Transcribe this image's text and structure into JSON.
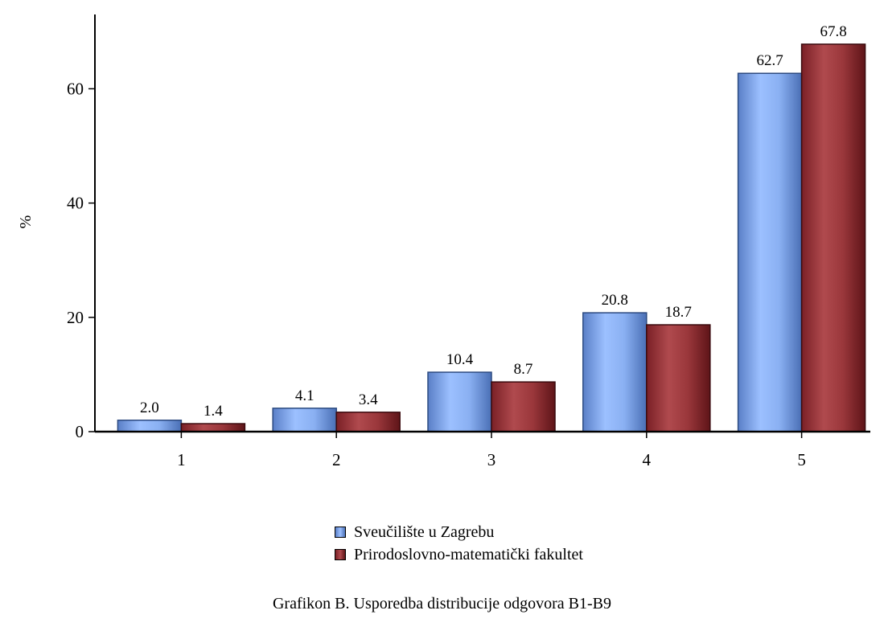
{
  "chart_data": {
    "type": "bar",
    "categories": [
      "1",
      "2",
      "3",
      "4",
      "5"
    ],
    "series": [
      {
        "name": "Sveučilište u Zagrebu",
        "values": [
          2.0,
          4.1,
          10.4,
          20.8,
          62.7
        ],
        "labels": [
          "2.0",
          "4.1",
          "10.4",
          "20.8",
          "62.7"
        ],
        "color": "#8fb4f5"
      },
      {
        "name": "Prirodoslovno-matematički fakultet",
        "values": [
          1.4,
          3.4,
          8.7,
          18.7,
          67.8
        ],
        "labels": [
          "1.4",
          "3.4",
          "8.7",
          "18.7",
          "67.8"
        ],
        "color": "#a0383c"
      }
    ],
    "ylabel": "%",
    "xlabel": "",
    "ylim": [
      0,
      73
    ],
    "yticks": [
      0,
      20,
      40,
      60
    ],
    "ytick_labels": [
      "0",
      "20",
      "40",
      "60"
    ],
    "grid": false,
    "legend": "bottom-center"
  },
  "caption": "Grafikon B. Usporedba distribucije odgovora B1-B9"
}
